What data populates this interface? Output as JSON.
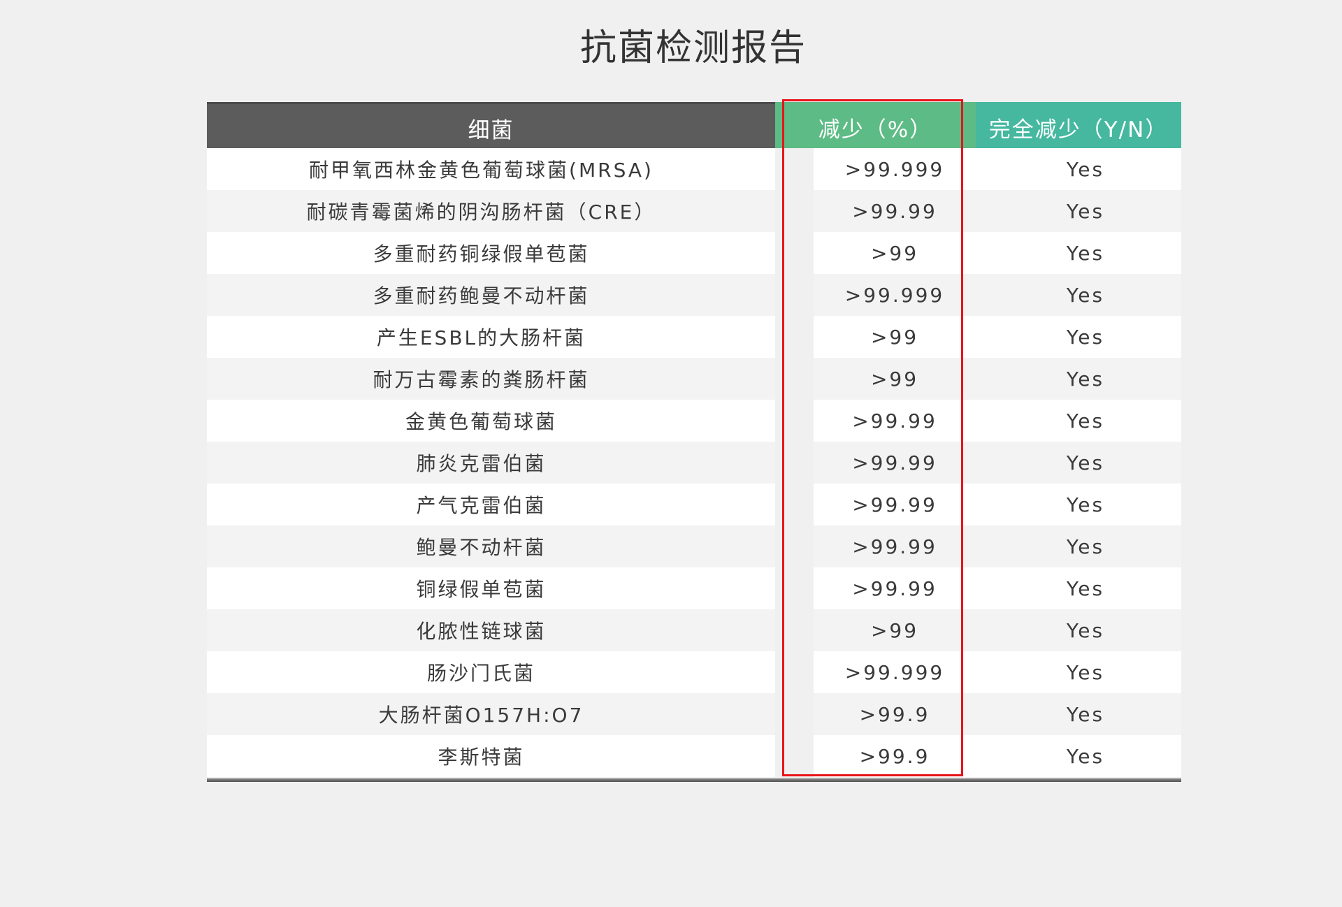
{
  "title": "抗菌检测报告",
  "headers": [
    "细菌",
    "减少（%）",
    "完全减少（Y/N）"
  ],
  "colors": {
    "header_bacteria": "#5c5c5c",
    "header_reduction": "#5dbb85",
    "header_complete": "#45b89f",
    "highlight_box": "#e8141a"
  },
  "rows": [
    {
      "bacteria": "耐甲氧西林金黄色葡萄球菌(MRSA)",
      "reduction": ">99.999",
      "complete": "Yes"
    },
    {
      "bacteria": "耐碳青霉菌烯的阴沟肠杆菌（CRE）",
      "reduction": ">99.99",
      "complete": "Yes"
    },
    {
      "bacteria": "多重耐药铜绿假单苞菌",
      "reduction": ">99",
      "complete": "Yes"
    },
    {
      "bacteria": "多重耐药鲍曼不动杆菌",
      "reduction": ">99.999",
      "complete": "Yes"
    },
    {
      "bacteria": "产生ESBL的大肠杆菌",
      "reduction": ">99",
      "complete": "Yes"
    },
    {
      "bacteria": "耐万古霉素的粪肠杆菌",
      "reduction": ">99",
      "complete": "Yes"
    },
    {
      "bacteria": "金黄色葡萄球菌",
      "reduction": ">99.99",
      "complete": "Yes"
    },
    {
      "bacteria": "肺炎克雷伯菌",
      "reduction": ">99.99",
      "complete": "Yes"
    },
    {
      "bacteria": "产气克雷伯菌",
      "reduction": ">99.99",
      "complete": "Yes"
    },
    {
      "bacteria": "鲍曼不动杆菌",
      "reduction": ">99.99",
      "complete": "Yes"
    },
    {
      "bacteria": "铜绿假单苞菌",
      "reduction": ">99.99",
      "complete": "Yes"
    },
    {
      "bacteria": "化脓性链球菌",
      "reduction": ">99",
      "complete": "Yes"
    },
    {
      "bacteria": "肠沙门氏菌",
      "reduction": ">99.999",
      "complete": "Yes"
    },
    {
      "bacteria": "大肠杆菌O157H:O7",
      "reduction": ">99.9",
      "complete": "Yes"
    },
    {
      "bacteria": "李斯特菌",
      "reduction": ">99.9",
      "complete": "Yes"
    }
  ]
}
